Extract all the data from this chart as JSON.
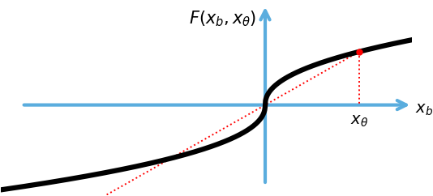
{
  "figsize": [
    5.34,
    2.42
  ],
  "dpi": 100,
  "axis_color": "#5aadde",
  "curve_color": "#000000",
  "red_color": "#ff0000",
  "curve_lw": 4.5,
  "axis_lw": 3.0,
  "red_lw": 1.4,
  "x_range": [
    -4.5,
    2.5
  ],
  "y_range": [
    -1.3,
    1.5
  ],
  "x_theta": 1.6,
  "title_text": "$F(x_b, x_\\theta)$",
  "xlabel_text": "$x_b$",
  "xtheta_text": "$x_\\theta$",
  "background_color": "#ffffff",
  "title_fontsize": 15,
  "label_fontsize": 14
}
